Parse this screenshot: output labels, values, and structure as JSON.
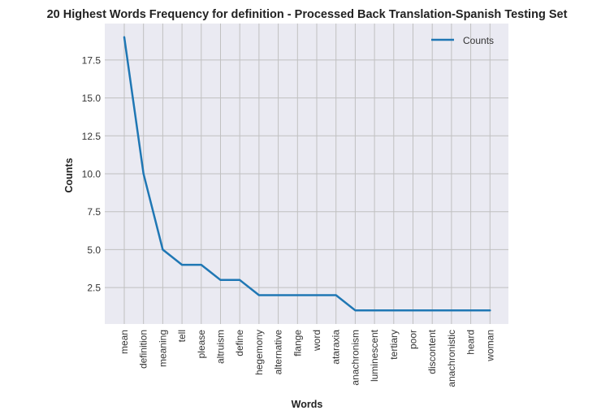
{
  "chart_data": {
    "type": "line",
    "title": "20 Highest Words Frequency for definition - Processed Back Translation-Spanish Testing Set",
    "xlabel": "Words",
    "ylabel": "Counts",
    "categories": [
      "mean",
      "definition",
      "meaning",
      "tell",
      "please",
      "altruism",
      "define",
      "hegemony",
      "alternative",
      "flange",
      "word",
      "ataraxia",
      "anachronism",
      "luminescent",
      "tertiary",
      "poor",
      "discontent",
      "anachronistic",
      "heard",
      "woman"
    ],
    "series": [
      {
        "name": "Counts",
        "values": [
          19,
          10,
          5,
          4,
          4,
          3,
          3,
          2,
          2,
          2,
          2,
          2,
          1,
          1,
          1,
          1,
          1,
          1,
          1,
          1
        ],
        "color": "#1f77b4"
      }
    ],
    "yticks": [
      "2.5",
      "5.0",
      "7.5",
      "10.0",
      "12.5",
      "15.0",
      "17.5"
    ],
    "ylim": [
      0.1,
      19.9
    ],
    "grid": true,
    "legend_position": "upper right",
    "background_color": "#eaeaf2",
    "grid_color": "#c0c0c0"
  }
}
